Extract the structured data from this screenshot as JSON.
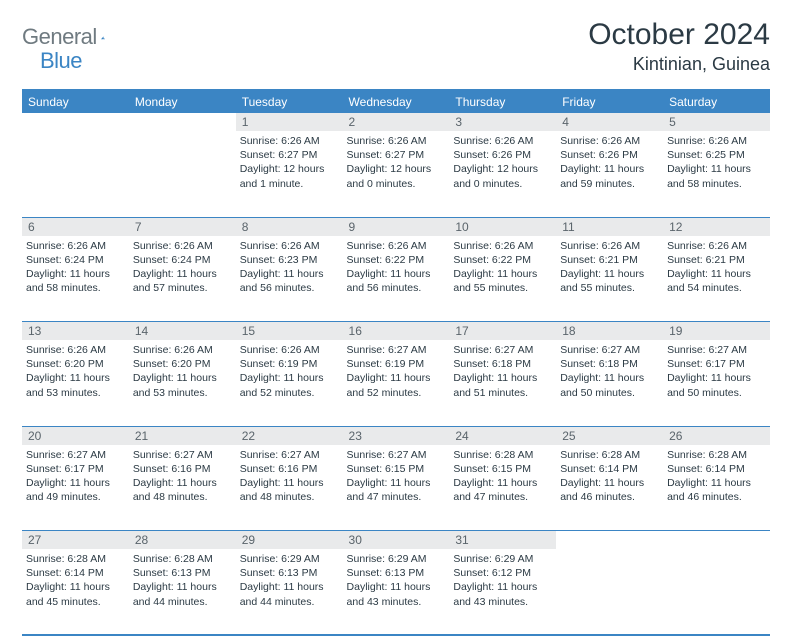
{
  "logo": {
    "left": "General",
    "right": "Blue"
  },
  "title": "October 2024",
  "location": "Kintinian, Guinea",
  "dayHeaders": [
    "Sunday",
    "Monday",
    "Tuesday",
    "Wednesday",
    "Thursday",
    "Friday",
    "Saturday"
  ],
  "colors": {
    "accent": "#3b85c4",
    "headerBg": "#3b85c4",
    "dayNumBg": "#e9eaeb",
    "text": "#2b3a44",
    "logoGray": "#6f7a80"
  },
  "weeks": [
    [
      null,
      null,
      {
        "n": "1",
        "sr": "Sunrise: 6:26 AM",
        "ss": "Sunset: 6:27 PM",
        "dl": "Daylight: 12 hours and 1 minute."
      },
      {
        "n": "2",
        "sr": "Sunrise: 6:26 AM",
        "ss": "Sunset: 6:27 PM",
        "dl": "Daylight: 12 hours and 0 minutes."
      },
      {
        "n": "3",
        "sr": "Sunrise: 6:26 AM",
        "ss": "Sunset: 6:26 PM",
        "dl": "Daylight: 12 hours and 0 minutes."
      },
      {
        "n": "4",
        "sr": "Sunrise: 6:26 AM",
        "ss": "Sunset: 6:26 PM",
        "dl": "Daylight: 11 hours and 59 minutes."
      },
      {
        "n": "5",
        "sr": "Sunrise: 6:26 AM",
        "ss": "Sunset: 6:25 PM",
        "dl": "Daylight: 11 hours and 58 minutes."
      }
    ],
    [
      {
        "n": "6",
        "sr": "Sunrise: 6:26 AM",
        "ss": "Sunset: 6:24 PM",
        "dl": "Daylight: 11 hours and 58 minutes."
      },
      {
        "n": "7",
        "sr": "Sunrise: 6:26 AM",
        "ss": "Sunset: 6:24 PM",
        "dl": "Daylight: 11 hours and 57 minutes."
      },
      {
        "n": "8",
        "sr": "Sunrise: 6:26 AM",
        "ss": "Sunset: 6:23 PM",
        "dl": "Daylight: 11 hours and 56 minutes."
      },
      {
        "n": "9",
        "sr": "Sunrise: 6:26 AM",
        "ss": "Sunset: 6:22 PM",
        "dl": "Daylight: 11 hours and 56 minutes."
      },
      {
        "n": "10",
        "sr": "Sunrise: 6:26 AM",
        "ss": "Sunset: 6:22 PM",
        "dl": "Daylight: 11 hours and 55 minutes."
      },
      {
        "n": "11",
        "sr": "Sunrise: 6:26 AM",
        "ss": "Sunset: 6:21 PM",
        "dl": "Daylight: 11 hours and 55 minutes."
      },
      {
        "n": "12",
        "sr": "Sunrise: 6:26 AM",
        "ss": "Sunset: 6:21 PM",
        "dl": "Daylight: 11 hours and 54 minutes."
      }
    ],
    [
      {
        "n": "13",
        "sr": "Sunrise: 6:26 AM",
        "ss": "Sunset: 6:20 PM",
        "dl": "Daylight: 11 hours and 53 minutes."
      },
      {
        "n": "14",
        "sr": "Sunrise: 6:26 AM",
        "ss": "Sunset: 6:20 PM",
        "dl": "Daylight: 11 hours and 53 minutes."
      },
      {
        "n": "15",
        "sr": "Sunrise: 6:26 AM",
        "ss": "Sunset: 6:19 PM",
        "dl": "Daylight: 11 hours and 52 minutes."
      },
      {
        "n": "16",
        "sr": "Sunrise: 6:27 AM",
        "ss": "Sunset: 6:19 PM",
        "dl": "Daylight: 11 hours and 52 minutes."
      },
      {
        "n": "17",
        "sr": "Sunrise: 6:27 AM",
        "ss": "Sunset: 6:18 PM",
        "dl": "Daylight: 11 hours and 51 minutes."
      },
      {
        "n": "18",
        "sr": "Sunrise: 6:27 AM",
        "ss": "Sunset: 6:18 PM",
        "dl": "Daylight: 11 hours and 50 minutes."
      },
      {
        "n": "19",
        "sr": "Sunrise: 6:27 AM",
        "ss": "Sunset: 6:17 PM",
        "dl": "Daylight: 11 hours and 50 minutes."
      }
    ],
    [
      {
        "n": "20",
        "sr": "Sunrise: 6:27 AM",
        "ss": "Sunset: 6:17 PM",
        "dl": "Daylight: 11 hours and 49 minutes."
      },
      {
        "n": "21",
        "sr": "Sunrise: 6:27 AM",
        "ss": "Sunset: 6:16 PM",
        "dl": "Daylight: 11 hours and 48 minutes."
      },
      {
        "n": "22",
        "sr": "Sunrise: 6:27 AM",
        "ss": "Sunset: 6:16 PM",
        "dl": "Daylight: 11 hours and 48 minutes."
      },
      {
        "n": "23",
        "sr": "Sunrise: 6:27 AM",
        "ss": "Sunset: 6:15 PM",
        "dl": "Daylight: 11 hours and 47 minutes."
      },
      {
        "n": "24",
        "sr": "Sunrise: 6:28 AM",
        "ss": "Sunset: 6:15 PM",
        "dl": "Daylight: 11 hours and 47 minutes."
      },
      {
        "n": "25",
        "sr": "Sunrise: 6:28 AM",
        "ss": "Sunset: 6:14 PM",
        "dl": "Daylight: 11 hours and 46 minutes."
      },
      {
        "n": "26",
        "sr": "Sunrise: 6:28 AM",
        "ss": "Sunset: 6:14 PM",
        "dl": "Daylight: 11 hours and 46 minutes."
      }
    ],
    [
      {
        "n": "27",
        "sr": "Sunrise: 6:28 AM",
        "ss": "Sunset: 6:14 PM",
        "dl": "Daylight: 11 hours and 45 minutes."
      },
      {
        "n": "28",
        "sr": "Sunrise: 6:28 AM",
        "ss": "Sunset: 6:13 PM",
        "dl": "Daylight: 11 hours and 44 minutes."
      },
      {
        "n": "29",
        "sr": "Sunrise: 6:29 AM",
        "ss": "Sunset: 6:13 PM",
        "dl": "Daylight: 11 hours and 44 minutes."
      },
      {
        "n": "30",
        "sr": "Sunrise: 6:29 AM",
        "ss": "Sunset: 6:13 PM",
        "dl": "Daylight: 11 hours and 43 minutes."
      },
      {
        "n": "31",
        "sr": "Sunrise: 6:29 AM",
        "ss": "Sunset: 6:12 PM",
        "dl": "Daylight: 11 hours and 43 minutes."
      },
      null,
      null
    ]
  ]
}
